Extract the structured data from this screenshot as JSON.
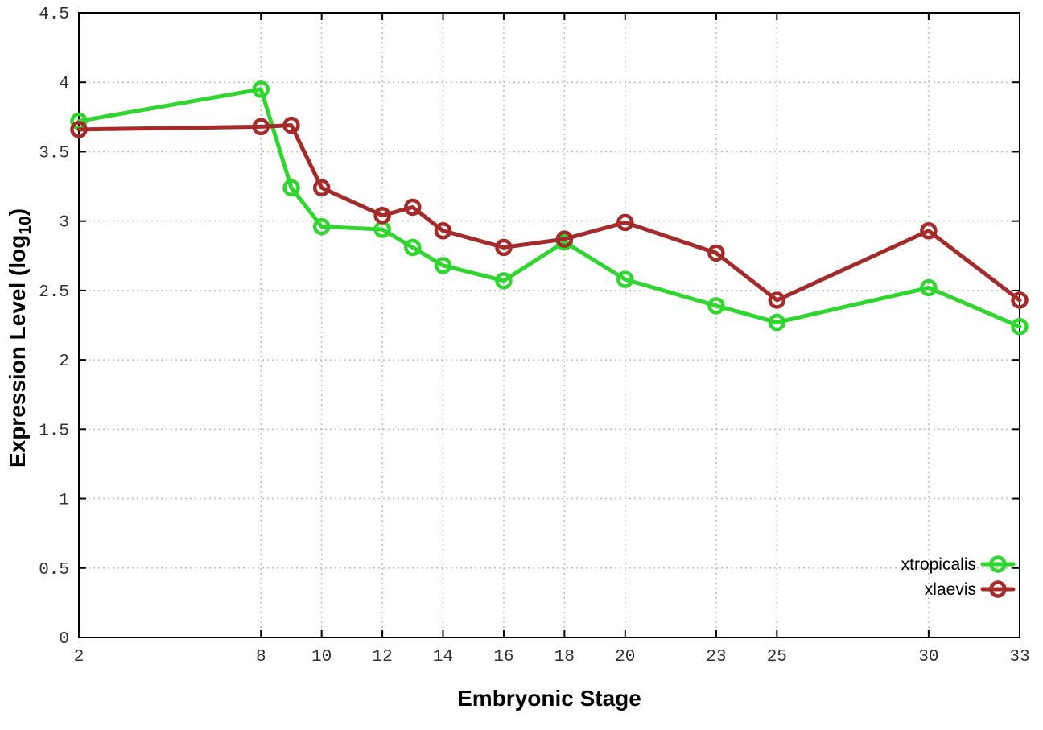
{
  "chart_data": {
    "type": "line",
    "title": "",
    "xlabel": "Embryonic Stage",
    "ylabel": {
      "base": "Expression Level (log",
      "subscript": "10",
      "close": ")"
    },
    "xlim": [
      2,
      33
    ],
    "ylim": [
      0,
      4.5
    ],
    "xticks": [
      2,
      8,
      10,
      12,
      14,
      16,
      18,
      20,
      23,
      25,
      30,
      33
    ],
    "xtick_labels": [
      "2",
      "8",
      "10",
      "12",
      "14",
      "16",
      "18",
      "20",
      "23",
      "25",
      "30",
      "33"
    ],
    "yticks": [
      0,
      0.5,
      1,
      1.5,
      2,
      2.5,
      3,
      3.5,
      4,
      4.5
    ],
    "ytick_labels": [
      "0",
      "0.5",
      "1",
      "1.5",
      "2",
      "2.5",
      "3",
      "3.5",
      "4",
      "4.5"
    ],
    "grid": true,
    "legend_position": "bottom-right",
    "x": [
      2,
      8,
      9,
      10,
      12,
      13,
      14,
      16,
      18,
      20,
      23,
      25,
      30,
      33
    ],
    "series": [
      {
        "name": "xtropicalis",
        "color": "#2ed62e",
        "values": [
          3.72,
          3.95,
          3.24,
          2.96,
          2.94,
          2.81,
          2.68,
          2.57,
          2.85,
          2.58,
          2.39,
          2.27,
          2.52,
          2.24
        ]
      },
      {
        "name": "xlaevis",
        "color": "#a52a2a",
        "values": [
          3.66,
          3.68,
          3.69,
          3.24,
          3.04,
          3.1,
          2.93,
          2.81,
          2.87,
          2.99,
          2.77,
          2.43,
          2.93,
          2.43
        ]
      }
    ],
    "colors": {
      "grid": "#bbbbbb",
      "axis": "#000000",
      "tick_text": "#303030",
      "background": "#ffffff"
    }
  }
}
